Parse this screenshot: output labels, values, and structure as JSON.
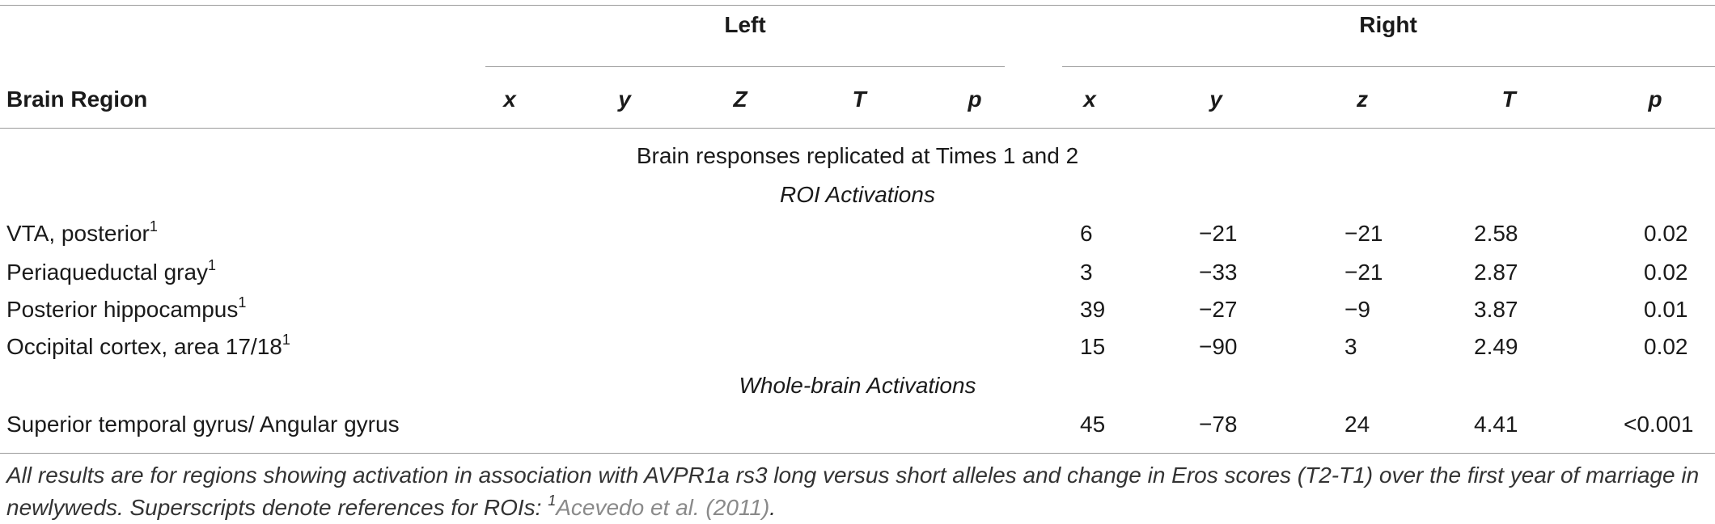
{
  "table": {
    "group_left": "Left",
    "group_right": "Right",
    "col_region": "Brain Region",
    "left_cols": [
      "x",
      "y",
      "Z",
      "T",
      "p"
    ],
    "right_cols": [
      "x",
      "y",
      "z",
      "T",
      "p"
    ],
    "section_title": "Brain responses replicated at Times 1 and 2",
    "subsection_roi": "ROI Activations",
    "subsection_whole": "Whole-brain Activations",
    "roi_rows": [
      {
        "region": "VTA, posterior",
        "sup": "1",
        "x": "6",
        "y": "−21",
        "z": "−21",
        "T": "2.58",
        "p": "0.02"
      },
      {
        "region": "Periaqueductal gray",
        "sup": "1",
        "x": "3",
        "y": "−33",
        "z": "−21",
        "T": "2.87",
        "p": "0.02"
      },
      {
        "region": "Posterior hippocampus",
        "sup": "1",
        "x": "39",
        "y": "−27",
        "z": "−9",
        "T": "3.87",
        "p": "0.01"
      },
      {
        "region": "Occipital cortex, area 17/18",
        "sup": "1",
        "x": "15",
        "y": "−90",
        "z": "3",
        "T": "2.49",
        "p": "0.02"
      }
    ],
    "whole_rows": [
      {
        "region": "Superior temporal gyrus/ Angular gyrus",
        "x": "45",
        "y": "−78",
        "z": "24",
        "T": "4.41",
        "p": "<0.001"
      }
    ]
  },
  "footnote": {
    "text": "All results are for regions showing activation in association with AVPR1a rs3 long versus short alleles and change in Eros scores (T2-T1) over the first year of marriage in newlyweds. Superscripts denote references for ROIs: ",
    "sup": "1",
    "ref": "Acevedo et al. (2011)",
    "end": "."
  }
}
